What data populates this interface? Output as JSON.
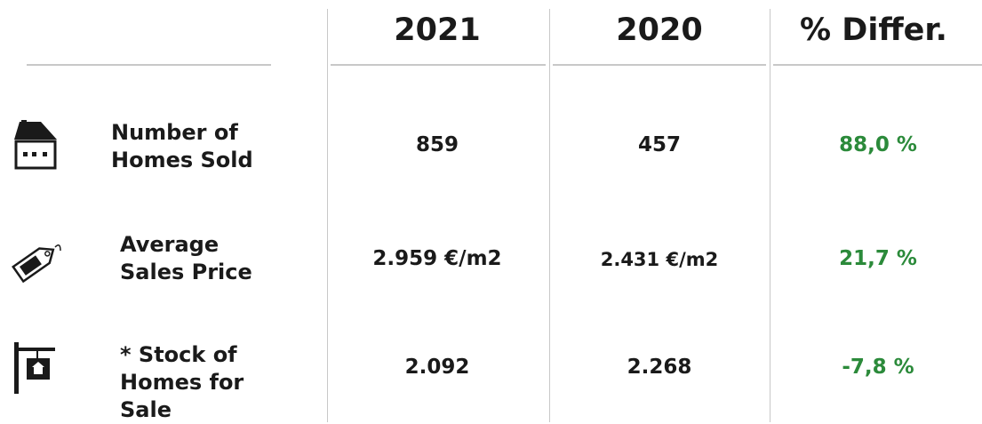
{
  "table": {
    "columns": [
      "2021",
      "2020",
      "% Differ."
    ],
    "rows": [
      {
        "label": "Number of\nHomes Sold",
        "values": [
          "859",
          "457",
          "88,0 %"
        ]
      },
      {
        "label": "Average\nSales Price",
        "values": [
          "2.959 €/m2",
          "2.431 €/m2",
          "21,7 %"
        ]
      },
      {
        "label": "* Stock of\nHomes for\nSale",
        "values": [
          "2.092",
          "2.268",
          "-7,8 %"
        ]
      }
    ]
  }
}
